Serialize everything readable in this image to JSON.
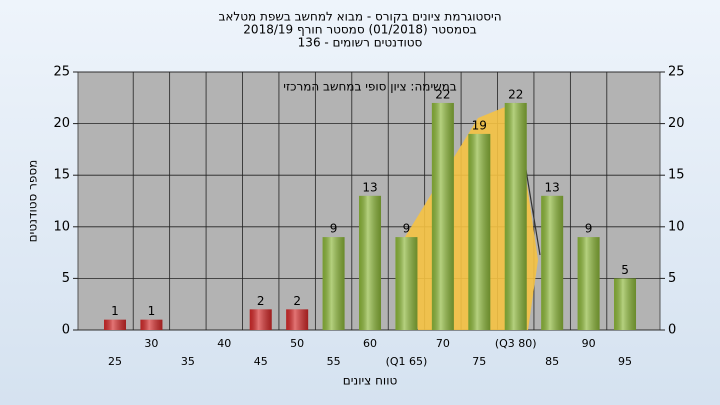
{
  "chart_data": {
    "type": "bar",
    "title_lines": [
      "היסטוגרמת ציונים בקורס - מבוא למחשב בשפת מטלאב",
      "בסמסטר  (01/2018)  סמסטר חורף 2018/19",
      "סטודנטים רשומים - 136"
    ],
    "annotation": "במשימה: ציון סופי במחשב המרכזי",
    "x_label": "טווח ציונים",
    "y_label": "מספר סטודנטים",
    "categories": [
      "25",
      "30",
      "35",
      "40",
      "45",
      "50",
      "55",
      "60",
      "(Q1 65)",
      "70",
      "75",
      "(Q3 80)",
      "85",
      "90",
      "95"
    ],
    "values": [
      1,
      1,
      null,
      null,
      2,
      2,
      9,
      13,
      9,
      22,
      19,
      22,
      13,
      9,
      5
    ],
    "colors": [
      "#d42a2a",
      "#d42a2a",
      "#d42a2a",
      "#d42a2a",
      "#d42a2a",
      "#d42a2a",
      "#8db83a",
      "#8db83a",
      "#8db83a",
      "#8db83a",
      "#8db83a",
      "#8db83a",
      "#8db83a",
      "#8db83a",
      "#8db83a"
    ],
    "ylim": [
      0,
      25
    ],
    "yticks": [
      0,
      5,
      10,
      15,
      20,
      25
    ],
    "grid": true
  }
}
